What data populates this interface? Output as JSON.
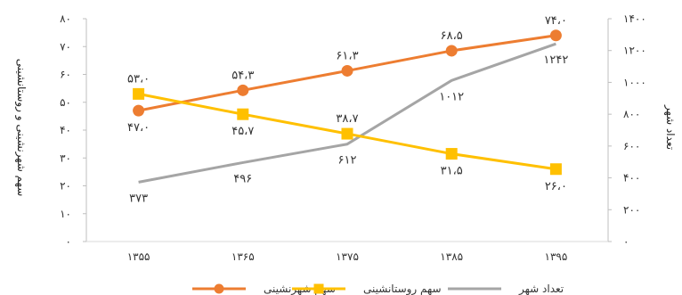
{
  "chart_data": {
    "type": "line",
    "x": [
      "۱۳۵۵",
      "۱۳۶۵",
      "۱۳۷۵",
      "۱۳۸۵",
      "۱۳۹۵"
    ],
    "left_ylabel": "سهم شهرنشینی و روستانشینی",
    "right_ylabel": "تعداد شهر",
    "left_ylim": [
      0,
      80
    ],
    "right_ylim": [
      0,
      1400
    ],
    "left_ticks": [
      "۰",
      "۱۰",
      "۲۰",
      "۳۰",
      "۴۰",
      "۵۰",
      "۶۰",
      "۷۰",
      "۸۰"
    ],
    "right_ticks": [
      "۰",
      "۲۰۰",
      "۴۰۰",
      "۶۰۰",
      "۸۰۰",
      "۱۰۰۰",
      "۱۲۰۰",
      "۱۴۰۰"
    ],
    "legend_position": "bottom",
    "series": [
      {
        "name": "سهم شهرنشینی",
        "axis": "left",
        "color": "#ED7D31",
        "marker": "circle",
        "values": [
          47.0,
          54.3,
          61.3,
          68.5,
          74.0
        ],
        "labels": [
          "۴۷،۰",
          "۵۴،۳",
          "۶۱،۳",
          "۶۸،۵",
          "۷۴،۰"
        ],
        "label_pos": [
          "below",
          "above",
          "above",
          "above",
          "above"
        ]
      },
      {
        "name": "سهم روستانشینی",
        "axis": "left",
        "color": "#FFC000",
        "marker": "square",
        "values": [
          53.0,
          45.7,
          38.7,
          31.5,
          26.0
        ],
        "labels": [
          "۵۳،۰",
          "۴۵،۷",
          "۳۸،۷",
          "۳۱،۵",
          "۲۶،۰"
        ],
        "label_pos": [
          "above",
          "below",
          "above",
          "below",
          "below"
        ]
      },
      {
        "name": "تعداد شهر",
        "axis": "right",
        "color": "#A5A5A5",
        "marker": "none",
        "values": [
          373,
          496,
          612,
          1012,
          1242
        ],
        "labels": [
          "۳۷۳",
          "۴۹۶",
          "۶۱۲",
          "۱۰۱۲",
          "۱۲۴۲"
        ],
        "label_pos": [
          "below",
          "below",
          "below",
          "below",
          "below"
        ]
      }
    ]
  }
}
